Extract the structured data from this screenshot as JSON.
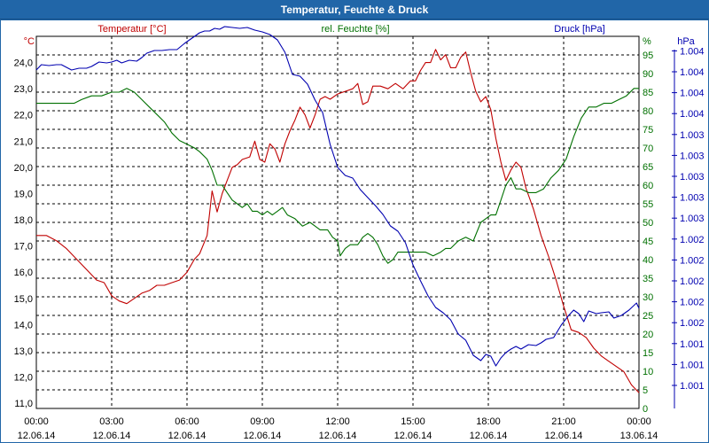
{
  "window": {
    "title": "Temperatur, Feuchte & Druck"
  },
  "colors": {
    "temperature": "#c00000",
    "humidity": "#007000",
    "pressure": "#0000b0",
    "grid": "#000000",
    "titlebar": "#2166a8"
  },
  "chart_data": {
    "type": "line",
    "title": "Temperatur, Feuchte & Druck",
    "series_labels": {
      "temperature": "Temperatur [°C]",
      "humidity": "rel. Feuchte [%]",
      "pressure": "Druck [hPa]"
    },
    "axes": {
      "left": {
        "unit": "°C",
        "min": 10.8,
        "max": 25.0,
        "ticks": [
          "11,0",
          "12,0",
          "13,0",
          "14,0",
          "15,0",
          "16,0",
          "17,0",
          "18,0",
          "19,0",
          "20,0",
          "21,0",
          "22,0",
          "23,0",
          "24,0"
        ],
        "tick_values": [
          11,
          12,
          13,
          14,
          15,
          16,
          17,
          18,
          19,
          20,
          21,
          22,
          23,
          24
        ]
      },
      "mid": {
        "unit": "%",
        "min": 0,
        "max": 100,
        "ticks": [
          "0",
          "5",
          "10",
          "15",
          "20",
          "25",
          "30",
          "35",
          "40",
          "45",
          "50",
          "55",
          "60",
          "65",
          "70",
          "75",
          "80",
          "85",
          "90",
          "95"
        ],
        "tick_values": [
          0,
          5,
          10,
          15,
          20,
          25,
          30,
          35,
          40,
          45,
          50,
          55,
          60,
          65,
          70,
          75,
          80,
          85,
          90,
          95
        ]
      },
      "right": {
        "unit": "hPa",
        "ticks": [
          "1.001",
          "1.001",
          "1.001",
          "1.002",
          "1.002",
          "1.002",
          "1.002",
          "1.002",
          "1.003",
          "1.003",
          "1.003",
          "1.003",
          "1.003",
          "1.004",
          "1.004",
          "1.004",
          "1.004"
        ]
      }
    },
    "x_axis": {
      "min": 0,
      "max": 24,
      "ticks": [
        {
          "h": 0,
          "time": "00:00",
          "date": "12.06.14"
        },
        {
          "h": 3,
          "time": "03:00",
          "date": "12.06.14"
        },
        {
          "h": 6,
          "time": "06:00",
          "date": "12.06.14"
        },
        {
          "h": 9,
          "time": "09:00",
          "date": "12.06.14"
        },
        {
          "h": 12,
          "time": "12:00",
          "date": "12.06.14"
        },
        {
          "h": 15,
          "time": "15:00",
          "date": "12.06.14"
        },
        {
          "h": 18,
          "time": "18:00",
          "date": "12.06.14"
        },
        {
          "h": 21,
          "time": "21:00",
          "date": "12.06.14"
        },
        {
          "h": 24,
          "time": "00:00",
          "date": "13.06.14"
        }
      ]
    },
    "grid": true,
    "series": [
      {
        "key": "temperature",
        "axis": "left",
        "points": [
          [
            0,
            17.4
          ],
          [
            0.4,
            17.4
          ],
          [
            0.8,
            17.2
          ],
          [
            1.2,
            16.9
          ],
          [
            1.6,
            16.5
          ],
          [
            2.0,
            16.1
          ],
          [
            2.4,
            15.7
          ],
          [
            2.7,
            15.6
          ],
          [
            3.0,
            15.1
          ],
          [
            3.3,
            14.9
          ],
          [
            3.6,
            14.8
          ],
          [
            3.9,
            15.0
          ],
          [
            4.2,
            15.2
          ],
          [
            4.5,
            15.3
          ],
          [
            4.8,
            15.5
          ],
          [
            5.1,
            15.5
          ],
          [
            5.4,
            15.6
          ],
          [
            5.7,
            15.7
          ],
          [
            6.0,
            16.0
          ],
          [
            6.3,
            16.5
          ],
          [
            6.5,
            16.7
          ],
          [
            6.8,
            17.4
          ],
          [
            7.0,
            19.1
          ],
          [
            7.2,
            18.3
          ],
          [
            7.4,
            19.0
          ],
          [
            7.6,
            19.5
          ],
          [
            7.8,
            20.0
          ],
          [
            8.0,
            20.1
          ],
          [
            8.2,
            20.3
          ],
          [
            8.5,
            20.4
          ],
          [
            8.7,
            21.0
          ],
          [
            8.9,
            20.3
          ],
          [
            9.1,
            20.2
          ],
          [
            9.3,
            20.9
          ],
          [
            9.5,
            20.7
          ],
          [
            9.7,
            20.2
          ],
          [
            9.9,
            20.9
          ],
          [
            10.1,
            21.4
          ],
          [
            10.3,
            21.8
          ],
          [
            10.5,
            22.3
          ],
          [
            10.7,
            22.0
          ],
          [
            10.9,
            21.5
          ],
          [
            11.1,
            22.0
          ],
          [
            11.3,
            22.6
          ],
          [
            11.5,
            22.7
          ],
          [
            11.7,
            22.6
          ],
          [
            12.0,
            22.8
          ],
          [
            12.3,
            22.9
          ],
          [
            12.6,
            23.0
          ],
          [
            12.8,
            23.2
          ],
          [
            13.0,
            22.4
          ],
          [
            13.2,
            22.5
          ],
          [
            13.4,
            23.1
          ],
          [
            13.7,
            23.1
          ],
          [
            14.0,
            23.0
          ],
          [
            14.3,
            23.2
          ],
          [
            14.6,
            23.0
          ],
          [
            14.9,
            23.3
          ],
          [
            15.1,
            23.3
          ],
          [
            15.3,
            23.7
          ],
          [
            15.5,
            24.0
          ],
          [
            15.7,
            24.0
          ],
          [
            15.9,
            24.5
          ],
          [
            16.1,
            24.1
          ],
          [
            16.3,
            24.3
          ],
          [
            16.5,
            23.8
          ],
          [
            16.7,
            23.8
          ],
          [
            16.9,
            24.2
          ],
          [
            17.1,
            24.4
          ],
          [
            17.3,
            23.6
          ],
          [
            17.5,
            22.9
          ],
          [
            17.7,
            22.5
          ],
          [
            17.9,
            22.7
          ],
          [
            18.1,
            22.2
          ],
          [
            18.3,
            21.1
          ],
          [
            18.5,
            20.2
          ],
          [
            18.7,
            19.5
          ],
          [
            18.9,
            19.9
          ],
          [
            19.1,
            20.2
          ],
          [
            19.3,
            20.0
          ],
          [
            19.5,
            19.2
          ],
          [
            19.8,
            18.4
          ],
          [
            20.1,
            17.4
          ],
          [
            20.4,
            16.6
          ],
          [
            20.7,
            15.7
          ],
          [
            21.0,
            14.7
          ],
          [
            21.3,
            13.8
          ],
          [
            21.6,
            13.7
          ],
          [
            21.9,
            13.5
          ],
          [
            22.2,
            13.1
          ],
          [
            22.5,
            12.8
          ],
          [
            22.8,
            12.6
          ],
          [
            23.1,
            12.4
          ],
          [
            23.4,
            12.2
          ],
          [
            23.7,
            11.7
          ],
          [
            24.0,
            11.4
          ]
        ]
      },
      {
        "key": "humidity",
        "axis": "mid",
        "points": [
          [
            0,
            82
          ],
          [
            0.5,
            82
          ],
          [
            1.0,
            82
          ],
          [
            1.5,
            82
          ],
          [
            1.8,
            83
          ],
          [
            2.2,
            84
          ],
          [
            2.6,
            84
          ],
          [
            3.0,
            85
          ],
          [
            3.3,
            85
          ],
          [
            3.6,
            86
          ],
          [
            3.9,
            85
          ],
          [
            4.2,
            83
          ],
          [
            4.5,
            81
          ],
          [
            4.8,
            79
          ],
          [
            5.1,
            77
          ],
          [
            5.4,
            74
          ],
          [
            5.7,
            72
          ],
          [
            6.0,
            71
          ],
          [
            6.3,
            70
          ],
          [
            6.5,
            69
          ],
          [
            6.8,
            67
          ],
          [
            7.0,
            64
          ],
          [
            7.2,
            60
          ],
          [
            7.4,
            60
          ],
          [
            7.6,
            58
          ],
          [
            7.8,
            56
          ],
          [
            8.0,
            55
          ],
          [
            8.2,
            54
          ],
          [
            8.4,
            55
          ],
          [
            8.6,
            53
          ],
          [
            8.8,
            53
          ],
          [
            9.0,
            52
          ],
          [
            9.2,
            53
          ],
          [
            9.4,
            52
          ],
          [
            9.6,
            53
          ],
          [
            9.8,
            54
          ],
          [
            10.0,
            52
          ],
          [
            10.3,
            51
          ],
          [
            10.6,
            49
          ],
          [
            10.9,
            50
          ],
          [
            11.1,
            49
          ],
          [
            11.3,
            48
          ],
          [
            11.6,
            48
          ],
          [
            11.8,
            46
          ],
          [
            12.0,
            45
          ],
          [
            12.1,
            41
          ],
          [
            12.3,
            43
          ],
          [
            12.5,
            44
          ],
          [
            12.8,
            44
          ],
          [
            13.0,
            46
          ],
          [
            13.2,
            47
          ],
          [
            13.4,
            46
          ],
          [
            13.6,
            44
          ],
          [
            13.8,
            41
          ],
          [
            14.0,
            39
          ],
          [
            14.2,
            40
          ],
          [
            14.4,
            42
          ],
          [
            14.6,
            42
          ],
          [
            14.9,
            42
          ],
          [
            15.2,
            42
          ],
          [
            15.5,
            42
          ],
          [
            15.8,
            41
          ],
          [
            16.1,
            42
          ],
          [
            16.3,
            43
          ],
          [
            16.5,
            43
          ],
          [
            16.8,
            45
          ],
          [
            17.1,
            46
          ],
          [
            17.4,
            45
          ],
          [
            17.7,
            50
          ],
          [
            17.9,
            51
          ],
          [
            18.1,
            52
          ],
          [
            18.3,
            52
          ],
          [
            18.5,
            56
          ],
          [
            18.7,
            60
          ],
          [
            18.9,
            62
          ],
          [
            19.1,
            59
          ],
          [
            19.3,
            59
          ],
          [
            19.6,
            58
          ],
          [
            19.9,
            58
          ],
          [
            20.2,
            59
          ],
          [
            20.5,
            62
          ],
          [
            20.8,
            64
          ],
          [
            21.1,
            67
          ],
          [
            21.4,
            73
          ],
          [
            21.7,
            78
          ],
          [
            22.0,
            81
          ],
          [
            22.3,
            81
          ],
          [
            22.6,
            82
          ],
          [
            22.9,
            82
          ],
          [
            23.2,
            83
          ],
          [
            23.5,
            84
          ],
          [
            23.8,
            86
          ],
          [
            24.0,
            86
          ]
        ]
      },
      {
        "key": "pressure",
        "axis": "px",
        "points": [
          [
            0,
            78
          ],
          [
            0.2,
            72
          ],
          [
            0.5,
            73
          ],
          [
            0.8,
            72
          ],
          [
            1.0,
            72
          ],
          [
            1.2,
            75
          ],
          [
            1.4,
            78
          ],
          [
            1.7,
            76
          ],
          [
            2.0,
            76
          ],
          [
            2.2,
            74
          ],
          [
            2.5,
            69
          ],
          [
            2.8,
            70
          ],
          [
            3.0,
            69
          ],
          [
            3.2,
            67
          ],
          [
            3.4,
            70
          ],
          [
            3.7,
            67
          ],
          [
            4.0,
            68
          ],
          [
            4.2,
            64
          ],
          [
            4.4,
            59
          ],
          [
            4.7,
            56
          ],
          [
            5.0,
            56
          ],
          [
            5.3,
            55
          ],
          [
            5.6,
            55
          ],
          [
            5.9,
            48
          ],
          [
            6.2,
            42
          ],
          [
            6.5,
            36
          ],
          [
            6.7,
            34
          ],
          [
            6.9,
            34
          ],
          [
            7.1,
            31
          ],
          [
            7.3,
            32
          ],
          [
            7.5,
            29
          ],
          [
            7.8,
            30
          ],
          [
            8.1,
            31
          ],
          [
            8.4,
            30
          ],
          [
            8.7,
            33
          ],
          [
            9.0,
            35
          ],
          [
            9.3,
            38
          ],
          [
            9.6,
            44
          ],
          [
            9.9,
            58
          ],
          [
            10.2,
            83
          ],
          [
            10.5,
            85
          ],
          [
            10.8,
            94
          ],
          [
            11.1,
            112
          ],
          [
            11.4,
            126
          ],
          [
            11.7,
            162
          ],
          [
            12.0,
            188
          ],
          [
            12.3,
            197
          ],
          [
            12.6,
            200
          ],
          [
            12.9,
            213
          ],
          [
            13.2,
            222
          ],
          [
            13.5,
            231
          ],
          [
            13.8,
            241
          ],
          [
            14.1,
            254
          ],
          [
            14.4,
            260
          ],
          [
            14.7,
            273
          ],
          [
            15.0,
            298
          ],
          [
            15.3,
            316
          ],
          [
            15.6,
            333
          ],
          [
            15.9,
            346
          ],
          [
            16.2,
            352
          ],
          [
            16.5,
            360
          ],
          [
            16.8,
            376
          ],
          [
            17.1,
            383
          ],
          [
            17.4,
            400
          ],
          [
            17.7,
            406
          ],
          [
            17.9,
            399
          ],
          [
            18.1,
            401
          ],
          [
            18.3,
            412
          ],
          [
            18.5,
            403
          ],
          [
            18.7,
            397
          ],
          [
            18.9,
            393
          ],
          [
            19.1,
            390
          ],
          [
            19.3,
            393
          ],
          [
            19.6,
            388
          ],
          [
            19.9,
            389
          ],
          [
            20.1,
            386
          ],
          [
            20.3,
            382
          ],
          [
            20.6,
            380
          ],
          [
            20.9,
            366
          ],
          [
            21.2,
            355
          ],
          [
            21.4,
            349
          ],
          [
            21.6,
            353
          ],
          [
            21.8,
            362
          ],
          [
            22.0,
            350
          ],
          [
            22.3,
            353
          ],
          [
            22.5,
            352
          ],
          [
            22.8,
            351
          ],
          [
            23.0,
            358
          ],
          [
            23.3,
            355
          ],
          [
            23.6,
            349
          ],
          [
            23.9,
            341
          ],
          [
            24.0,
            347
          ]
        ]
      }
    ]
  }
}
